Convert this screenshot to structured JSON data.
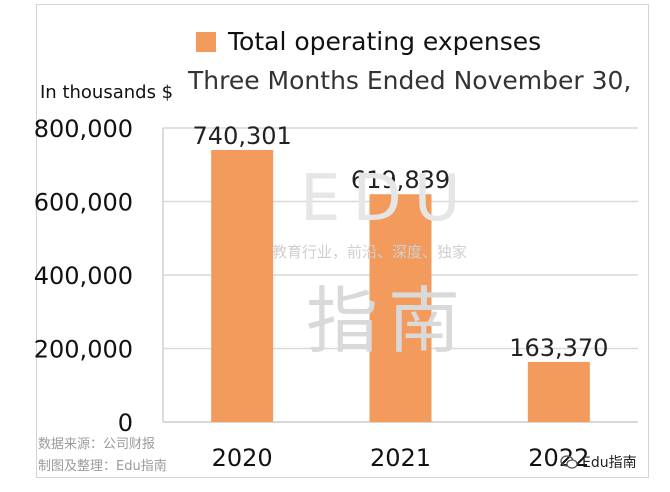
{
  "legend": {
    "label": "Total operating expenses"
  },
  "unit_label": "In thousands $",
  "subtitle": "Three Months Ended November 30,",
  "watermark": {
    "letters": "EDU",
    "tagline": "教育行业，前沿、深度、独家",
    "chars": "指南"
  },
  "source_note": "数据来源：公司财报",
  "maker_note": "制图及整理：Edu指南",
  "brand_label": "Edu指南",
  "colors": {
    "bar": "#f29b5c",
    "grid": "#d9d9d9"
  },
  "chart_data": {
    "type": "bar",
    "categories": [
      "2020",
      "2021",
      "2022"
    ],
    "series": [
      {
        "name": "Total operating expenses",
        "values": [
          740301,
          619839,
          163370
        ]
      }
    ],
    "data_labels": [
      "740,301",
      "619,839",
      "163,370"
    ],
    "y_ticks": [
      0,
      200000,
      400000,
      600000,
      800000
    ],
    "y_tick_labels": [
      "0",
      "200,000",
      "400,000",
      "600,000",
      "800,000"
    ],
    "ylim": [
      0,
      800000
    ],
    "grid": true,
    "legend_position": "top"
  }
}
